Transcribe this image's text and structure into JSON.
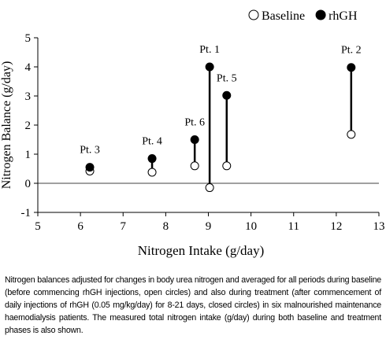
{
  "chart_data": {
    "type": "scatter",
    "xlabel": "Nitrogen Intake (g/day)",
    "ylabel": "Nitrogen Balance (g/day)",
    "x": [
      6.22,
      7.68,
      8.68,
      9.03,
      9.43,
      12.35
    ],
    "labels": [
      "Pt. 3",
      "Pt. 4",
      "Pt. 6",
      "Pt. 1",
      "Pt. 5",
      "Pt. 2"
    ],
    "series": [
      {
        "name": "Baseline",
        "color": "#ffffff",
        "values": [
          0.42,
          0.38,
          0.6,
          -0.15,
          0.6,
          1.68
        ]
      },
      {
        "name": "rhGH",
        "color": "#000000",
        "values": [
          0.55,
          0.85,
          1.5,
          4.0,
          3.02,
          3.98
        ]
      }
    ],
    "xlim": [
      5,
      13
    ],
    "xticks": [
      5,
      6,
      7,
      8,
      9,
      10,
      11,
      12,
      13
    ],
    "ylim": [
      -1,
      5
    ],
    "yticks": [
      -1,
      0,
      1,
      2,
      3,
      4,
      5
    ],
    "reference_line": 0,
    "legend": "top-right",
    "caption": "Nitrogen balances adjusted for changes in body urea nitrogen and averaged for all periods during baseline (before commencing rhGH injections, open circles) and also during treatment (after commencement of daily injections of rhGH (0.05 mg/kg/day) for 8-21 days, closed circles) in six malnourished maintenance haemodialysis patients. The measured total nitrogen intake (g/day) during both baseline and treatment phases is also shown."
  }
}
